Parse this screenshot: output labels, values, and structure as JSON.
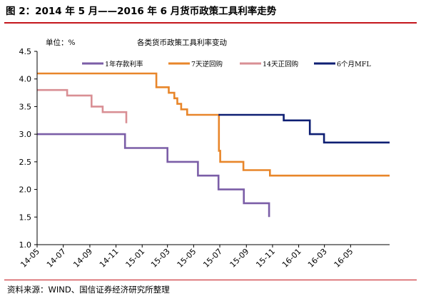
{
  "figure": {
    "title": "图 2：2014 年 5 月——2016 年 6 月货币政策工具利率走势",
    "source": "资料来源：WIND、国信证券经济研究所整理"
  },
  "colors": {
    "accent_rule": "#c4161c",
    "axis": "#000000"
  },
  "chart_data": {
    "type": "line",
    "step": true,
    "title": "各类货币政策工具利率变动",
    "unit_label": "单位：%",
    "ylim": [
      1.0,
      4.5
    ],
    "yticks": [
      "1.0",
      "1.5",
      "2.0",
      "2.5",
      "3.0",
      "3.5",
      "4.0",
      "4.5"
    ],
    "xlim": [
      "2014-05",
      "2016-07"
    ],
    "xticks": [
      "14-05",
      "14-07",
      "14-09",
      "14-11",
      "15-01",
      "15-03",
      "15-05",
      "15-07",
      "15-09",
      "15-11",
      "16-01",
      "16-03",
      "16-05"
    ],
    "grid": false,
    "legend_position": "top",
    "series": [
      {
        "name": "1年存款利率",
        "color": "#7b5ea7",
        "points": [
          {
            "x": "2014-05-01",
            "y": 3.0
          },
          {
            "x": "2014-11-22",
            "y": 2.75
          },
          {
            "x": "2015-03-01",
            "y": 2.5
          },
          {
            "x": "2015-05-11",
            "y": 2.25
          },
          {
            "x": "2015-06-28",
            "y": 2.0
          },
          {
            "x": "2015-08-26",
            "y": 1.75
          },
          {
            "x": "2015-10-24",
            "y": 1.5
          }
        ]
      },
      {
        "name": "7天逆回购",
        "color": "#e8862a",
        "points": [
          {
            "x": "2014-05-01",
            "y": 4.1
          },
          {
            "x": "2015-02-03",
            "y": 3.85
          },
          {
            "x": "2015-03-04",
            "y": 3.75
          },
          {
            "x": "2015-03-17",
            "y": 3.65
          },
          {
            "x": "2015-03-24",
            "y": 3.55
          },
          {
            "x": "2015-04-02",
            "y": 3.45
          },
          {
            "x": "2015-04-16",
            "y": 3.35
          },
          {
            "x": "2015-06-29",
            "y": 2.7
          },
          {
            "x": "2015-07-02",
            "y": 2.5
          },
          {
            "x": "2015-08-25",
            "y": 2.35
          },
          {
            "x": "2015-10-26",
            "y": 2.25
          },
          {
            "x": "2016-07-31",
            "y": 2.25
          }
        ]
      },
      {
        "name": "14天正回购",
        "color": "#d98f94",
        "points": [
          {
            "x": "2014-05-01",
            "y": 3.8
          },
          {
            "x": "2014-07-10",
            "y": 3.7
          },
          {
            "x": "2014-09-05",
            "y": 3.5
          },
          {
            "x": "2014-10-01",
            "y": 3.4
          },
          {
            "x": "2014-11-25",
            "y": 3.2
          }
        ]
      },
      {
        "name": "6个月MFL",
        "color": "#0e1f73",
        "points": [
          {
            "x": "2015-06-28",
            "y": 3.35
          },
          {
            "x": "2015-11-27",
            "y": 3.25
          },
          {
            "x": "2016-01-27",
            "y": 3.0
          },
          {
            "x": "2016-02-29",
            "y": 2.85
          },
          {
            "x": "2016-07-31",
            "y": 2.85
          }
        ]
      }
    ]
  }
}
